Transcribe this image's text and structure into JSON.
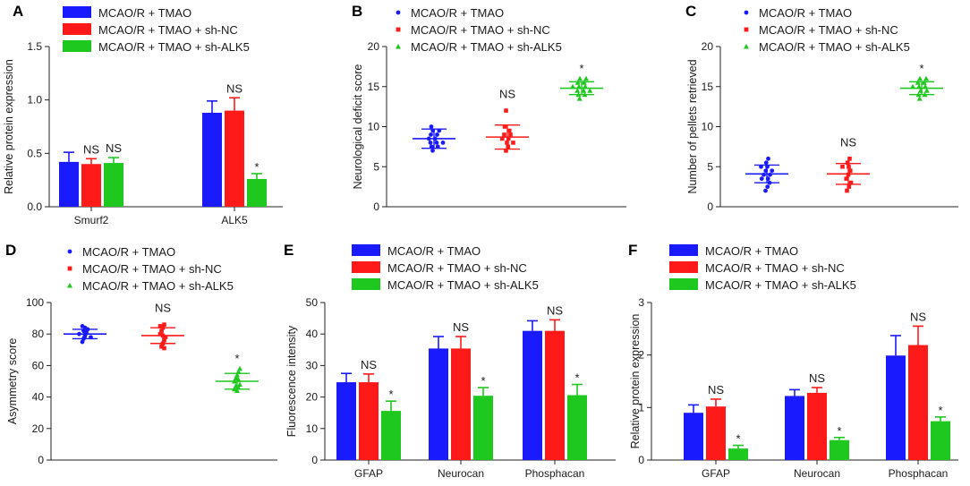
{
  "colors": {
    "blue": "#1a1aff",
    "red": "#ff1a1a",
    "green": "#1ec81e"
  },
  "chart_data": [
    {
      "id": "A",
      "type": "bar",
      "categories": [
        "Smurf2",
        "ALK5"
      ],
      "ylabel": "Relative protein expression",
      "ylim": [
        0,
        1.5
      ],
      "yticks": [
        "0.0",
        "0.5",
        "1.0",
        "1.5"
      ],
      "ytick_values": [
        0,
        0.5,
        1.0,
        1.5
      ],
      "series": [
        {
          "name": "MCAO/R + TMAO",
          "color_key": "blue",
          "values": [
            0.42,
            0.88
          ],
          "errors": [
            0.09,
            0.11
          ]
        },
        {
          "name": "MCAO/R + TMAO + sh-NC",
          "color_key": "red",
          "values": [
            0.4,
            0.9
          ],
          "errors": [
            0.05,
            0.12
          ]
        },
        {
          "name": "MCAO/R + TMAO + sh-ALK5",
          "color_key": "green",
          "values": [
            0.41,
            0.26
          ],
          "errors": [
            0.05,
            0.05
          ]
        }
      ],
      "annotations": [
        {
          "text": "NS",
          "series": 1,
          "category": 0
        },
        {
          "text": "NS",
          "series": 2,
          "category": 0
        },
        {
          "text": "NS",
          "series": 1,
          "category": 1
        },
        {
          "text": "*",
          "series": 2,
          "category": 1
        }
      ]
    },
    {
      "id": "B",
      "type": "scatter",
      "ylabel": "Neurological deficit score",
      "ylim": [
        0,
        20
      ],
      "yticks": [
        "0",
        "5",
        "10",
        "15",
        "20"
      ],
      "ytick_values": [
        0,
        5,
        10,
        15,
        20
      ],
      "series": [
        {
          "name": "MCAO/R + TMAO",
          "color_key": "blue",
          "mean": 8.5,
          "sd": 1.2,
          "points": [
            7.0,
            7.5,
            7.5,
            8.0,
            8.0,
            8.0,
            8.5,
            8.5,
            9.0,
            9.0,
            9.5,
            9.5,
            10.0
          ]
        },
        {
          "name": "MCAO/R + TMAO + sh-NC",
          "color_key": "red",
          "mean": 8.7,
          "sd": 1.5,
          "points": [
            7.0,
            7.5,
            8.0,
            8.0,
            8.5,
            8.5,
            9.0,
            9.0,
            9.5,
            10.0,
            12.0
          ]
        },
        {
          "name": "MCAO/R + TMAO + sh-ALK5",
          "color_key": "green",
          "mean": 14.8,
          "sd": 0.8,
          "points": [
            13.5,
            14.0,
            14.0,
            14.5,
            14.5,
            14.5,
            15.0,
            15.0,
            15.0,
            15.5,
            15.5,
            16.0,
            16.0
          ]
        }
      ],
      "annotations": [
        {
          "text": "NS",
          "series": 1
        },
        {
          "text": "*",
          "series": 2
        }
      ]
    },
    {
      "id": "C",
      "type": "scatter",
      "ylabel": "Number of pellets retrieved",
      "ylim": [
        0,
        20
      ],
      "yticks": [
        "0",
        "5",
        "10",
        "15",
        "20"
      ],
      "ytick_values": [
        0,
        5,
        10,
        15,
        20
      ],
      "series": [
        {
          "name": "MCAO/R + TMAO",
          "color_key": "blue",
          "mean": 4.1,
          "sd": 1.1,
          "points": [
            2.0,
            2.5,
            3.0,
            3.5,
            3.5,
            4.0,
            4.0,
            4.5,
            4.5,
            5.0,
            5.0,
            5.5,
            6.0
          ]
        },
        {
          "name": "MCAO/R + TMAO + sh-NC",
          "color_key": "red",
          "mean": 4.1,
          "sd": 1.3,
          "points": [
            2.0,
            2.5,
            3.0,
            3.5,
            4.0,
            4.5,
            5.0,
            5.0,
            5.5,
            6.0
          ]
        },
        {
          "name": "MCAO/R + TMAO + sh-ALK5",
          "color_key": "green",
          "mean": 14.8,
          "sd": 0.8,
          "points": [
            13.5,
            14.0,
            14.0,
            14.5,
            14.5,
            15.0,
            15.0,
            15.0,
            15.5,
            15.5,
            16.0,
            16.0
          ]
        }
      ],
      "annotations": [
        {
          "text": "NS",
          "series": 1
        },
        {
          "text": "*",
          "series": 2
        }
      ]
    },
    {
      "id": "D",
      "type": "scatter",
      "ylabel": "Asymmetry score",
      "ylim": [
        0,
        100
      ],
      "yticks": [
        "0",
        "20",
        "40",
        "60",
        "80",
        "100"
      ],
      "ytick_values": [
        0,
        20,
        40,
        60,
        80,
        100
      ],
      "series": [
        {
          "name": "MCAO/R + TMAO",
          "color_key": "blue",
          "mean": 80,
          "sd": 3,
          "points": [
            75,
            77,
            78,
            78,
            79,
            80,
            80,
            81,
            82,
            83,
            84,
            85
          ]
        },
        {
          "name": "MCAO/R + TMAO + sh-NC",
          "color_key": "red",
          "mean": 79,
          "sd": 5,
          "points": [
            71,
            72,
            74,
            76,
            78,
            79,
            80,
            82,
            84,
            85,
            86
          ]
        },
        {
          "name": "MCAO/R + TMAO + sh-ALK5",
          "color_key": "green",
          "mean": 50,
          "sd": 5,
          "points": [
            44,
            45,
            46,
            47,
            48,
            50,
            51,
            52,
            54,
            56,
            58
          ]
        }
      ],
      "annotations": [
        {
          "text": "NS",
          "series": 1
        },
        {
          "text": "*",
          "series": 2
        }
      ]
    },
    {
      "id": "E",
      "type": "bar",
      "categories": [
        "GFAP",
        "Neurocan",
        "Phosphacan"
      ],
      "ylabel": "Fluorescence intensity",
      "ylim": [
        0,
        50
      ],
      "yticks": [
        "0",
        "10",
        "20",
        "30",
        "40",
        "50"
      ],
      "ytick_values": [
        0,
        10,
        20,
        30,
        40,
        50
      ],
      "series": [
        {
          "name": "MCAO/R + TMAO",
          "color_key": "blue",
          "values": [
            24.7,
            35.4,
            41.0
          ],
          "errors": [
            2.8,
            3.8,
            3.2
          ]
        },
        {
          "name": "MCAO/R + TMAO + sh-NC",
          "color_key": "red",
          "values": [
            24.7,
            35.4,
            41.0
          ],
          "errors": [
            2.6,
            3.8,
            3.5
          ]
        },
        {
          "name": "MCAO/R + TMAO + sh-ALK5",
          "color_key": "green",
          "values": [
            15.6,
            20.4,
            20.6
          ],
          "errors": [
            3.1,
            2.6,
            3.4
          ]
        }
      ],
      "annotations": [
        {
          "text": "NS",
          "series": 1,
          "category": 0
        },
        {
          "text": "*",
          "series": 2,
          "category": 0
        },
        {
          "text": "NS",
          "series": 1,
          "category": 1
        },
        {
          "text": "*",
          "series": 2,
          "category": 1
        },
        {
          "text": "NS",
          "series": 1,
          "category": 2
        },
        {
          "text": "*",
          "series": 2,
          "category": 2
        }
      ]
    },
    {
      "id": "F",
      "type": "bar",
      "categories": [
        "GFAP",
        "Neurocan",
        "Phosphacan"
      ],
      "ylabel": "Relative protein expression",
      "ylim": [
        0,
        3
      ],
      "yticks": [
        "0",
        "1",
        "2",
        "3"
      ],
      "ytick_values": [
        0,
        1,
        2,
        3
      ],
      "series": [
        {
          "name": "MCAO/R + TMAO",
          "color_key": "blue",
          "values": [
            0.9,
            1.22,
            1.99
          ],
          "errors": [
            0.15,
            0.12,
            0.38
          ]
        },
        {
          "name": "MCAO/R + TMAO + sh-NC",
          "color_key": "red",
          "values": [
            1.02,
            1.28,
            2.19
          ],
          "errors": [
            0.14,
            0.1,
            0.36
          ]
        },
        {
          "name": "MCAO/R + TMAO + sh-ALK5",
          "color_key": "green",
          "values": [
            0.22,
            0.38,
            0.74
          ],
          "errors": [
            0.06,
            0.05,
            0.08
          ]
        }
      ],
      "annotations": [
        {
          "text": "NS",
          "series": 1,
          "category": 0
        },
        {
          "text": "*",
          "series": 2,
          "category": 0
        },
        {
          "text": "NS",
          "series": 1,
          "category": 1
        },
        {
          "text": "*",
          "series": 2,
          "category": 1
        },
        {
          "text": "NS",
          "series": 1,
          "category": 2
        },
        {
          "text": "*",
          "series": 2,
          "category": 2
        }
      ]
    }
  ]
}
